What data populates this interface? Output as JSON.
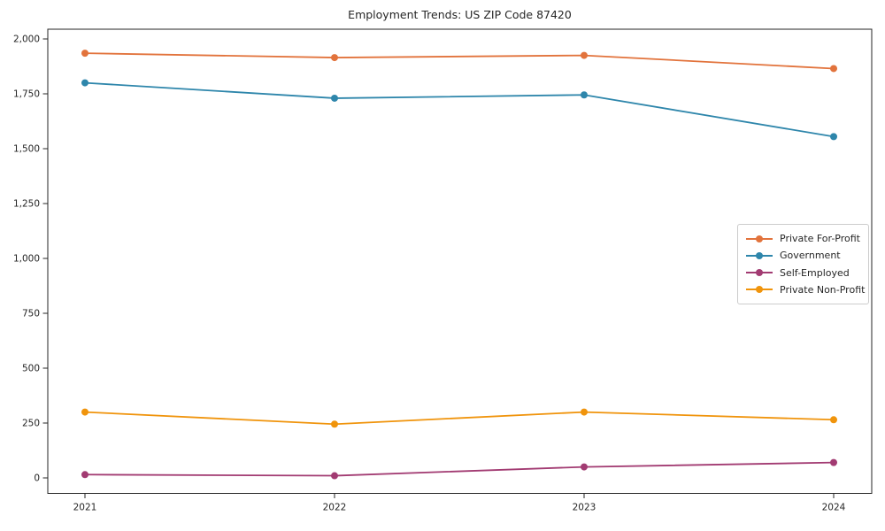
{
  "chart_data": {
    "type": "line",
    "title": "Employment Trends: US ZIP Code 87420",
    "xlabel": "",
    "ylabel": "",
    "categories": [
      "2021",
      "2022",
      "2023",
      "2024"
    ],
    "series": [
      {
        "name": "Private For-Profit",
        "color": "#E2733C",
        "values": [
          1935,
          1915,
          1925,
          1865
        ]
      },
      {
        "name": "Government",
        "color": "#2E86AB",
        "values": [
          1800,
          1730,
          1745,
          1555
        ]
      },
      {
        "name": "Self-Employed",
        "color": "#A23B72",
        "values": [
          15,
          10,
          50,
          70
        ]
      },
      {
        "name": "Private Non-Profit",
        "color": "#F0940C",
        "values": [
          300,
          245,
          300,
          265
        ]
      }
    ],
    "yticks": {
      "values": [
        0,
        250,
        500,
        750,
        1000,
        1250,
        1500,
        1750,
        2000
      ],
      "labels": [
        "0",
        "250",
        "500",
        "750",
        "1,000",
        "1,250",
        "1,500",
        "1,750",
        "2,000"
      ]
    },
    "ylim": [
      -70,
      2045
    ],
    "grid": false,
    "legend_position": "center-right",
    "marker": "circle",
    "background_color": "#ffffff",
    "axis_color": "#262626"
  }
}
